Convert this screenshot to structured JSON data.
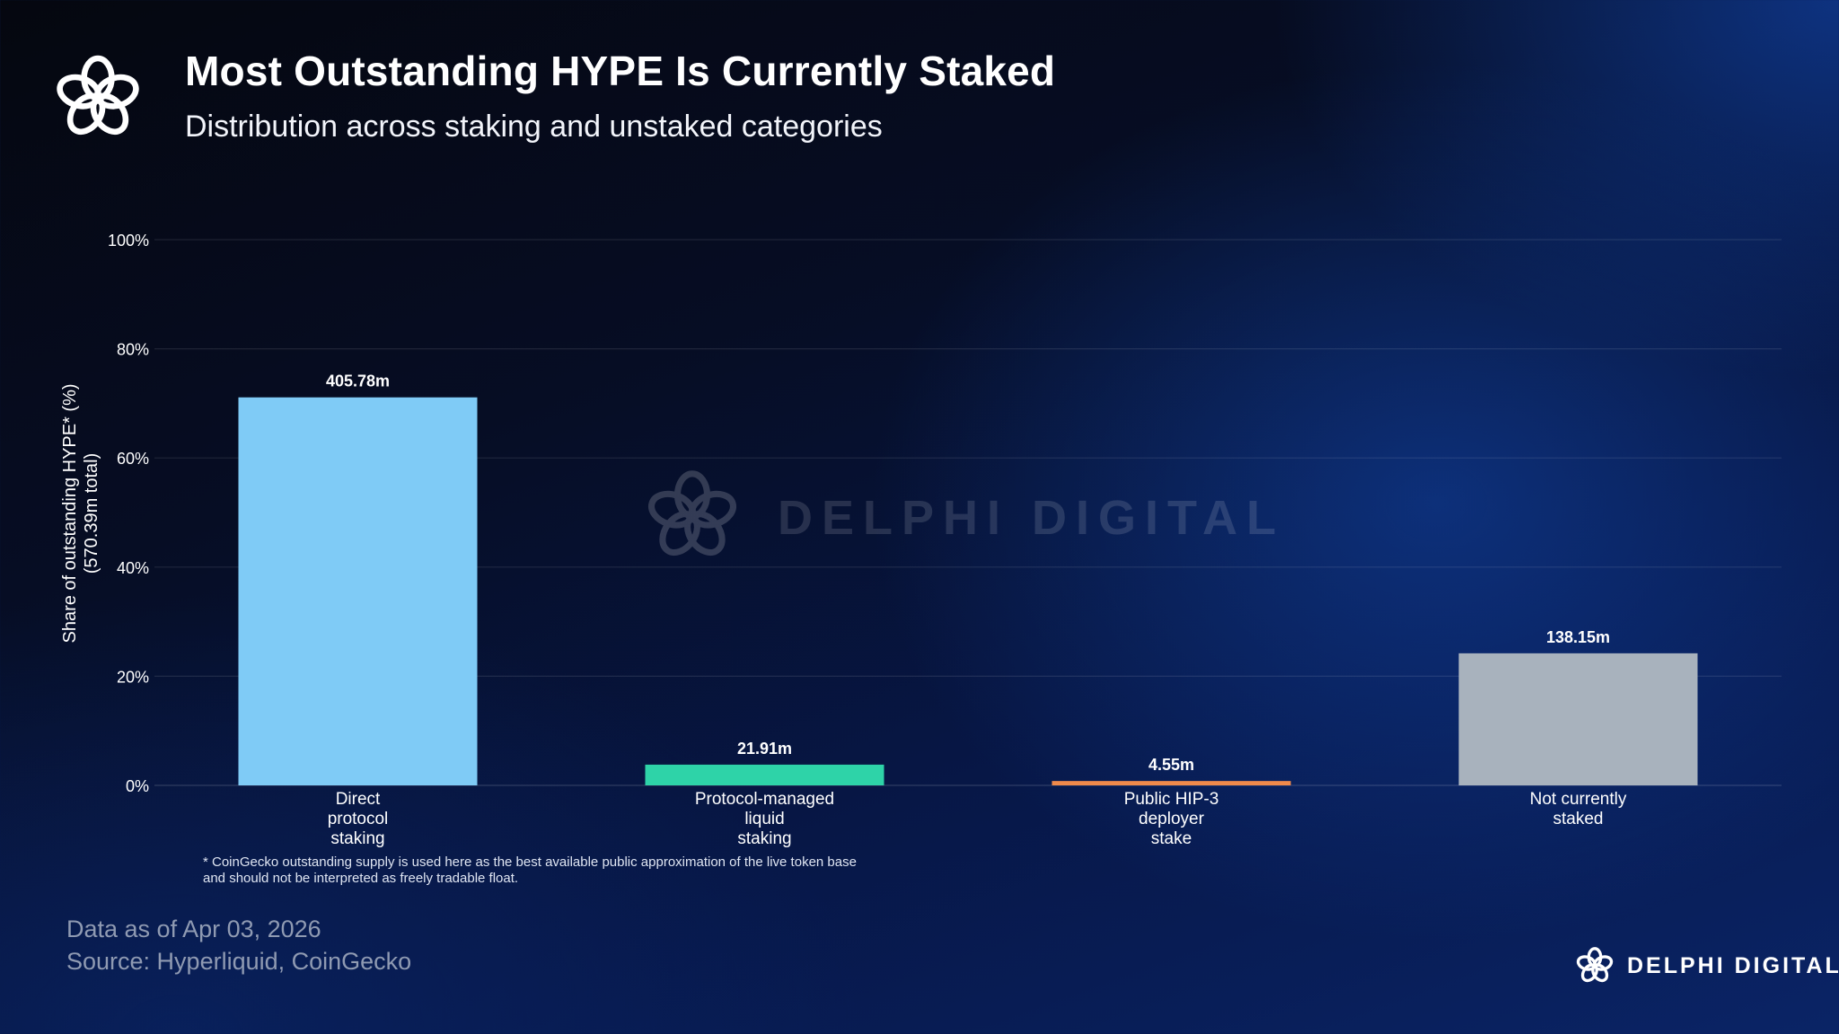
{
  "header": {
    "title": "Most Outstanding HYPE Is Currently Staked",
    "subtitle": "Distribution across staking and unstaked categories"
  },
  "footnote": {
    "line1": "* CoinGecko outstanding supply is used here as the best available public approximation of the live token base",
    "line2": "and should not be interpreted as freely tradable float."
  },
  "footer": {
    "data_date": "Data as of Apr 03, 2026",
    "source": "Source: Hyperliquid, CoinGecko",
    "brand": "DELPHI DIGITAL"
  },
  "watermark": {
    "text": "DELPHI DIGITAL"
  },
  "icons": {
    "logo": "delphi-flower-logo-icon"
  },
  "chart_data": {
    "type": "bar",
    "title": "Most Outstanding HYPE Is Currently Staked",
    "subtitle": "Distribution across staking and unstaked categories",
    "ylabel": [
      "Share of outstanding HYPE* (%)",
      "(570.39m total)"
    ],
    "xlabel": "",
    "ylim": [
      0,
      100
    ],
    "yticks": [
      "0%",
      "20%",
      "40%",
      "60%",
      "80%",
      "100%"
    ],
    "ytick_values": [
      0,
      20,
      40,
      60,
      80,
      100
    ],
    "grid": true,
    "categories": [
      [
        "Direct",
        "protocol",
        "staking"
      ],
      [
        "Protocol-managed",
        "liquid",
        "staking"
      ],
      [
        "Public HIP-3",
        "deployer",
        "stake"
      ],
      [
        "Not currently",
        "staked"
      ]
    ],
    "values": [
      71.1,
      3.8,
      0.8,
      24.2
    ],
    "data_labels": [
      "405.78m",
      "21.91m",
      "4.55m",
      "138.15m"
    ],
    "colors": [
      "#7fcbf6",
      "#2ed3a8",
      "#f08a4b",
      "#a8b2bd"
    ]
  }
}
